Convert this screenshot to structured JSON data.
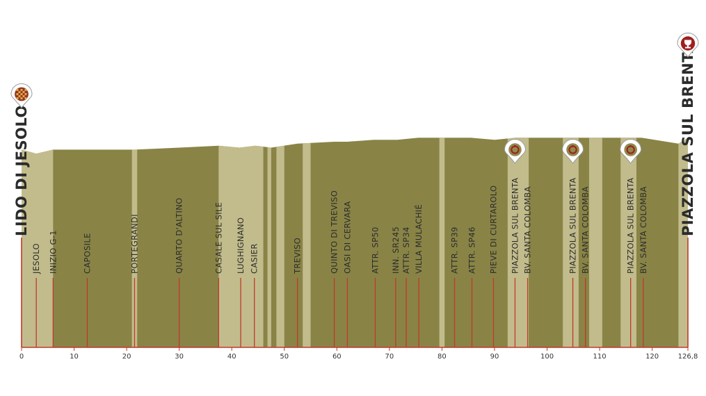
{
  "chart_data": {
    "type": "area",
    "title": "",
    "xlabel": "",
    "ylabel": "",
    "xlim": [
      0,
      126.8
    ],
    "ylim": [
      0,
      130
    ],
    "grid": false,
    "x_ticks": [
      {
        "value": 0,
        "label": "0"
      },
      {
        "value": 10,
        "label": "10"
      },
      {
        "value": 20,
        "label": "20"
      },
      {
        "value": 30,
        "label": "30"
      },
      {
        "value": 40,
        "label": "40"
      },
      {
        "value": 50,
        "label": "50"
      },
      {
        "value": 60,
        "label": "60"
      },
      {
        "value": 70,
        "label": "70"
      },
      {
        "value": 80,
        "label": "80"
      },
      {
        "value": 90,
        "label": "90"
      },
      {
        "value": 100,
        "label": "100"
      },
      {
        "value": 110,
        "label": "110"
      },
      {
        "value": 120,
        "label": "120"
      },
      {
        "value": 126.8,
        "label": "126,8"
      }
    ],
    "profile": {
      "x": [
        0,
        2.8,
        6,
        12.5,
        21.5,
        30,
        37.5,
        41.5,
        44.5,
        47.5,
        52.5,
        59.5,
        62,
        67,
        71.5,
        75.5,
        82.5,
        85.5,
        90,
        94,
        96.5,
        104.5,
        107,
        116,
        118,
        125,
        126.8
      ],
      "elev": [
        100,
        98,
        100,
        100,
        100,
        101,
        102,
        101,
        102,
        101,
        103,
        104,
        104,
        105,
        105,
        106,
        106,
        106,
        105,
        106,
        106,
        106,
        106,
        106,
        106,
        103,
        106
      ]
    },
    "stripes": [
      [
        0,
        6
      ],
      [
        21,
        22
      ],
      [
        37.5,
        46
      ],
      [
        46.8,
        47.5
      ],
      [
        48.5,
        50
      ],
      [
        53.5,
        55
      ],
      [
        79.5,
        80.5
      ],
      [
        92.5,
        96.5
      ],
      [
        103,
        106
      ],
      [
        108,
        110.5
      ],
      [
        114,
        117
      ],
      [
        125,
        126.8
      ]
    ],
    "colors": {
      "dark": "#898446",
      "light": "#c2bc8c",
      "line": "#c0392b",
      "axis": "#c0392b"
    },
    "start": {
      "km": 0,
      "label": "LIDO DI JESOLO",
      "icon": "checkered-flag-pin-icon"
    },
    "finish": {
      "km": 126.8,
      "label": "PIAZZOLA SUL BRENTA",
      "icon": "trophy-pin-icon"
    },
    "waypoints": [
      {
        "km": 2.8,
        "label": "JESOLO"
      },
      {
        "km": 6,
        "label": "INIZIO G-1"
      },
      {
        "km": 12.5,
        "label": "CAPOSILE"
      },
      {
        "km": 21.5,
        "label": "PORTEGRANDI"
      },
      {
        "km": 30,
        "label": "QUARTO D'ALTINO"
      },
      {
        "km": 37.5,
        "label": "CASALE SUL SILE"
      },
      {
        "km": 41.7,
        "label": "LUGHIGNANO"
      },
      {
        "km": 44.3,
        "label": "CASIER"
      },
      {
        "km": 52.5,
        "label": "TREVISO"
      },
      {
        "km": 59.5,
        "label": "QUINTO DI TREVISO"
      },
      {
        "km": 62,
        "label": "OASI DI CERVARA"
      },
      {
        "km": 67.3,
        "label": "ATTR. SP50"
      },
      {
        "km": 71.2,
        "label": "INN. SR245"
      },
      {
        "km": 73.2,
        "label": "ATTR. SP34"
      },
      {
        "km": 75.6,
        "label": "VILLA MULACHIÉ"
      },
      {
        "km": 82.4,
        "label": "ATTR. SP39"
      },
      {
        "km": 85.7,
        "label": "ATTR. SP46"
      },
      {
        "km": 89.8,
        "label": "PIEVE DI CURTAROLO"
      },
      {
        "km": 93.9,
        "label": "PIAZZOLA SUL BRENTA",
        "lap": true
      },
      {
        "km": 96.3,
        "label": "BV. SANTA COLOMBA"
      },
      {
        "km": 104.9,
        "label": "PIAZZOLA SUL BRENTA",
        "lap": true
      },
      {
        "km": 107.3,
        "label": "BV. SANTA COLOMBA"
      },
      {
        "km": 115.9,
        "label": "PIAZZOLA SUL BRENTA",
        "lap": true
      },
      {
        "km": 118.3,
        "label": "BV. SANTA COLOMBA"
      }
    ]
  }
}
